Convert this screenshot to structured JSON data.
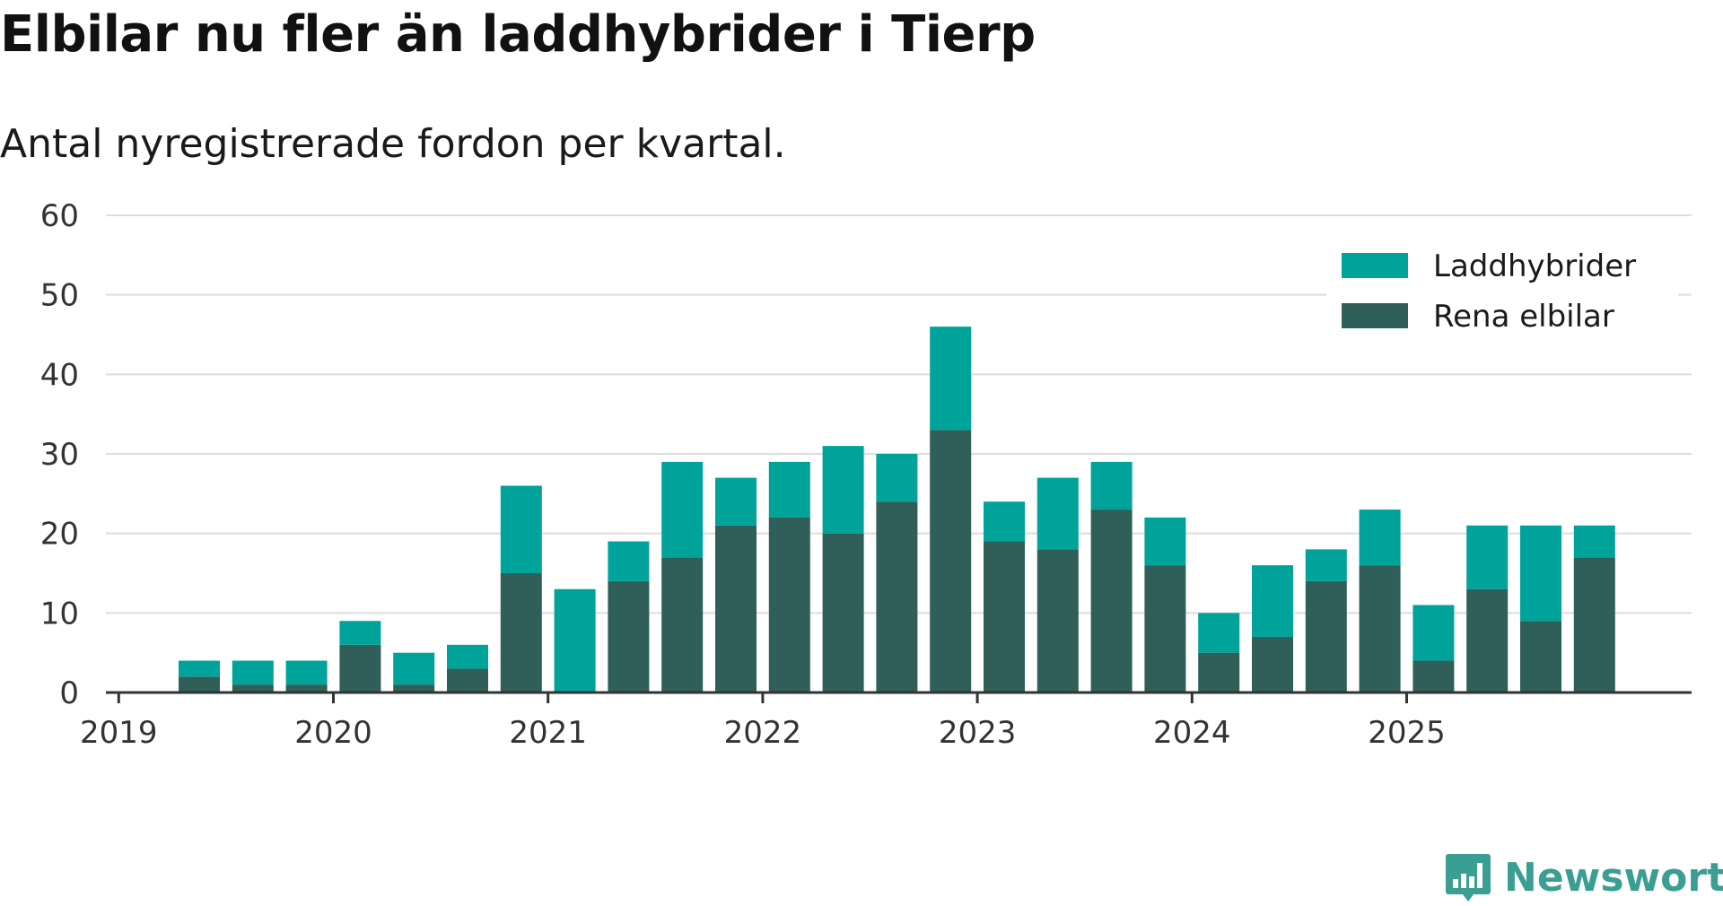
{
  "header": {
    "title": "Elbilar nu fler än laddhybrider i Tierp",
    "subtitle": "Antal nyregistrerade fordon per kvartal."
  },
  "brand": {
    "name": "Newsworthy",
    "icon": "bar-chart-icon",
    "color": "#3a9e93"
  },
  "colors": {
    "laddhybrider": "#00a39a",
    "rena_elbilar": "#2f5f58",
    "grid": "#dddddd",
    "axis": "#333333"
  },
  "chart_data": {
    "type": "bar",
    "stacked": true,
    "title": "Elbilar nu fler än laddhybrider i Tierp",
    "subtitle": "Antal nyregistrerade fordon per kvartal.",
    "xlabel": "",
    "ylabel": "",
    "ylim": [
      0,
      60
    ],
    "yticks": [
      0,
      10,
      20,
      30,
      40,
      50,
      60
    ],
    "xticks": [
      "2019",
      "2020",
      "2021",
      "2022",
      "2023",
      "2024",
      "2025"
    ],
    "grid": true,
    "legend_position": "top-right",
    "categories": [
      "2019 Q1",
      "2019 Q2",
      "2019 Q3",
      "2019 Q4",
      "2020 Q1",
      "2020 Q2",
      "2020 Q3",
      "2020 Q4",
      "2021 Q1",
      "2021 Q2",
      "2021 Q3",
      "2021 Q4",
      "2022 Q1",
      "2022 Q2",
      "2022 Q3",
      "2022 Q4",
      "2023 Q1",
      "2023 Q2",
      "2023 Q3",
      "2023 Q4",
      "2024 Q1",
      "2024 Q2",
      "2024 Q3",
      "2024 Q4",
      "2025 Q1",
      "2025 Q2",
      "2025 Q3"
    ],
    "series": [
      {
        "name": "Rena elbilar",
        "values": [
          2,
          1,
          1,
          6,
          1,
          3,
          15,
          0,
          14,
          17,
          21,
          22,
          20,
          24,
          33,
          19,
          18,
          23,
          16,
          5,
          7,
          14,
          16,
          4,
          13,
          9,
          17
        ]
      },
      {
        "name": "Laddhybrider",
        "values": [
          2,
          3,
          3,
          3,
          4,
          3,
          11,
          13,
          5,
          12,
          6,
          7,
          11,
          6,
          13,
          5,
          9,
          6,
          6,
          5,
          9,
          4,
          7,
          7,
          8,
          12,
          4
        ]
      }
    ]
  }
}
